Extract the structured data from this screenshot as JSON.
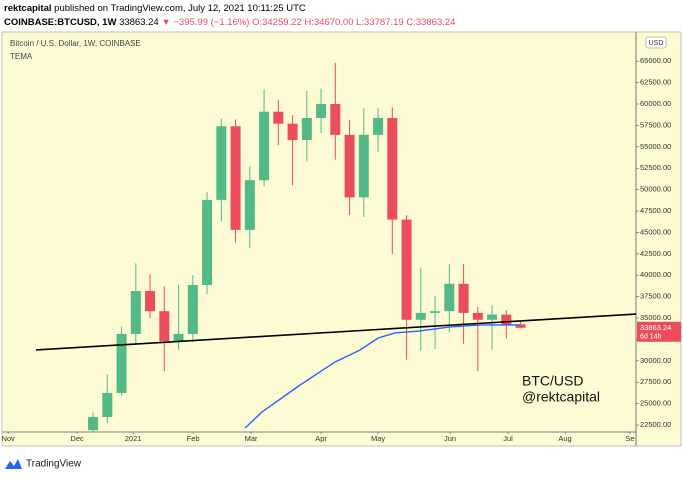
{
  "header": {
    "author": "rektcapital",
    "published": "published on TradingView.com, July 12, 2021 10:11:25 UTC",
    "symbol": "COINBASE:BTCUSD, 1W",
    "price": "33863.24",
    "change": "▼ −395.99 (−1.16%)",
    "ohlc": "O:34259.22 H:34670.00 L:33787.19 C:33863.24"
  },
  "chart_data": {
    "type": "candlestick",
    "title": "Bitcoin / U.S. Dollar, 1W, COINBASE",
    "indicator": "TEMA",
    "currency": "USD",
    "countdown": "6d 14h",
    "annotations": [
      "BTC/USD",
      "@rektcapital"
    ],
    "up_color": "#53b987",
    "down_color": "#eb4d5c",
    "background": "#fdfbd4",
    "open": [
      21900,
      23440,
      26250,
      33140,
      38160,
      35800,
      32300,
      33140,
      38860,
      48800,
      57400,
      45300,
      51100,
      59100,
      57700,
      55800,
      58360,
      60000,
      56400,
      49100,
      56400,
      58360,
      46500,
      34800,
      35600,
      35800,
      39000,
      35600,
      34800,
      35400,
      34259.22
    ],
    "high": [
      24000,
      28400,
      34000,
      41400,
      40100,
      38700,
      38900,
      40000,
      49700,
      58300,
      58200,
      52700,
      61700,
      60500,
      58700,
      61500,
      61800,
      64800,
      58100,
      59500,
      59500,
      59600,
      47000,
      40900,
      37600,
      41300,
      41300,
      36300,
      36500,
      35900,
      34670
    ],
    "low": [
      21000,
      22700,
      25900,
      32000,
      35000,
      28800,
      31300,
      32200,
      37800,
      46300,
      43800,
      43180,
      50400,
      55200,
      50500,
      53300,
      56600,
      53500,
      47000,
      46800,
      54400,
      42500,
      30100,
      31200,
      31400,
      33300,
      32000,
      28800,
      31300,
      32600,
      33787.19
    ],
    "close": [
      23440,
      26250,
      33140,
      38160,
      35800,
      32300,
      33140,
      38860,
      48800,
      57400,
      45300,
      51100,
      59100,
      57700,
      55800,
      58360,
      60000,
      56400,
      49100,
      56400,
      58360,
      46500,
      34800,
      35600,
      35800,
      39000,
      35600,
      34800,
      35400,
      34200,
      33863.24
    ],
    "tema": {
      "color": "#2962ff",
      "x": [
        10.67,
        11.86,
        14.53,
        16.98,
        18.74,
        20.0,
        21.19,
        22.95,
        25.05,
        27.16,
        29.96
      ],
      "values": [
        22160,
        24030,
        27180,
        29870,
        31270,
        32670,
        33260,
        33490,
        33960,
        34190,
        34190
      ]
    },
    "trendline": {
      "color": "#000000",
      "x": [
        -4,
        38.1
      ],
      "values": [
        31270,
        35470
      ]
    },
    "xlim": [
      -6.39,
      38.1
    ],
    "xticks": [
      {
        "value": -5.96,
        "label": "Nov"
      },
      {
        "value": -1.12,
        "label": "Dec"
      },
      {
        "value": 2.81,
        "label": "2021"
      },
      {
        "value": 7.02,
        "label": "Feb"
      },
      {
        "value": 11.09,
        "label": "Mar"
      },
      {
        "value": 16.0,
        "label": "Apr"
      },
      {
        "value": 20.0,
        "label": "May"
      },
      {
        "value": 25.05,
        "label": "Jun"
      },
      {
        "value": 29.12,
        "label": "Jul"
      },
      {
        "value": 33.12,
        "label": "Aug"
      },
      {
        "value": 37.68,
        "label": "Se"
      }
    ],
    "ylim": [
      21690,
      68410
    ],
    "yticks": [
      {
        "value": 22500,
        "label": "22500.00"
      },
      {
        "value": 25000,
        "label": "25000.00"
      },
      {
        "value": 27500,
        "label": "27500.00"
      },
      {
        "value": 30000,
        "label": "30000.00"
      },
      {
        "value": 32500,
        "label": "32500.00"
      },
      {
        "value": 35000,
        "label": "35000.00"
      },
      {
        "value": 37500,
        "label": "37500.00"
      },
      {
        "value": 40000,
        "label": "40000.00"
      },
      {
        "value": 42500,
        "label": "42500.00"
      },
      {
        "value": 45000,
        "label": "45000.00"
      },
      {
        "value": 47500,
        "label": "47500.00"
      },
      {
        "value": 50000,
        "label": "50000.00"
      },
      {
        "value": 52500,
        "label": "52500.00"
      },
      {
        "value": 55000,
        "label": "55000.00"
      },
      {
        "value": 57500,
        "label": "57500.00"
      },
      {
        "value": 60000,
        "label": "60000.00"
      },
      {
        "value": 62500,
        "label": "62500.00"
      },
      {
        "value": 65000,
        "label": "65000.00"
      }
    ],
    "grid": false
  },
  "footer": {
    "brand": "TradingView"
  }
}
